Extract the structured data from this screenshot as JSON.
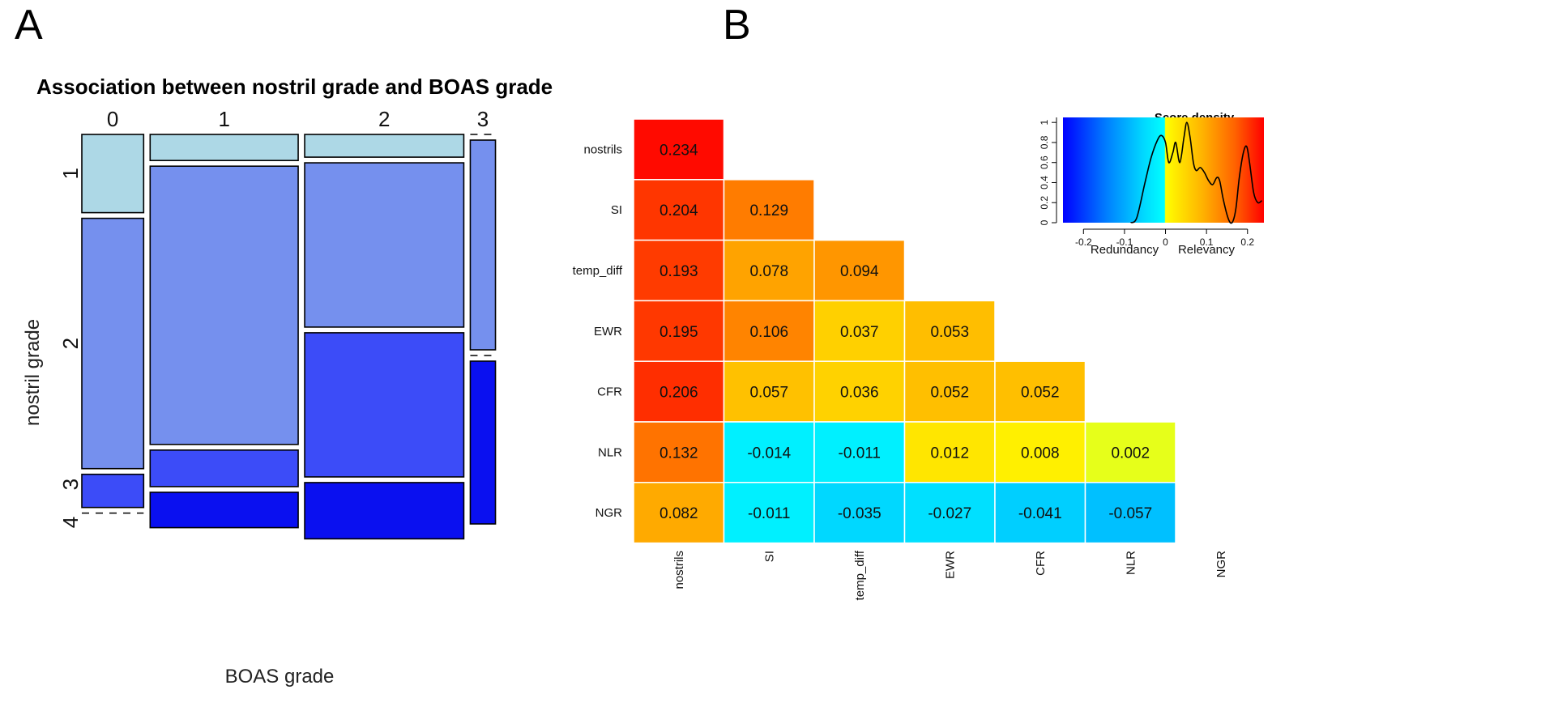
{
  "panels": {
    "a": "A",
    "b": "B"
  },
  "colors": {
    "row1": "#add8e6",
    "row2": "#7590ee",
    "row3": "#3c4cf8",
    "row4": "#0a10f0",
    "grid_line": "#ffffff"
  },
  "chart_data": [
    {
      "type": "mosaic",
      "title": "Association between nostril grade and BOAS grade",
      "xlabel": "BOAS grade",
      "ylabel": "nostril grade",
      "col_categories": [
        "0",
        "1",
        "2",
        "3"
      ],
      "row_categories": [
        "1",
        "2",
        "3",
        "4"
      ],
      "col_proportions": [
        0.162,
        0.388,
        0.417,
        0.066
      ],
      "row_proportions_by_col": [
        [
          0.21,
          0.672,
          0.089,
          0.0
        ],
        [
          0.07,
          0.747,
          0.098,
          0.095
        ],
        [
          0.061,
          0.441,
          0.387,
          0.151
        ],
        [
          0.0,
          0.563,
          0.0,
          0.437
        ]
      ]
    },
    {
      "type": "heatmap",
      "title": "",
      "row_labels": [
        "nostrils",
        "SI",
        "temp_diff",
        "EWR",
        "CFR",
        "NLR",
        "NGR"
      ],
      "col_labels": [
        "nostrils",
        "SI",
        "temp_diff",
        "EWR",
        "CFR",
        "NLR",
        "NGR"
      ],
      "values": [
        [
          0.234
        ],
        [
          0.204,
          0.129
        ],
        [
          0.193,
          0.078,
          0.094
        ],
        [
          0.195,
          0.106,
          0.037,
          0.053
        ],
        [
          0.206,
          0.057,
          0.036,
          0.052,
          0.052
        ],
        [
          0.132,
          -0.014,
          -0.011,
          0.012,
          0.008,
          0.002
        ],
        [
          0.082,
          -0.011,
          -0.035,
          -0.027,
          -0.041,
          -0.057
        ]
      ],
      "labels": [
        [
          "0.234"
        ],
        [
          "0.204",
          "0.129"
        ],
        [
          "0.193",
          "0.078",
          "0.094"
        ],
        [
          "0.195",
          "0.106",
          "0.037",
          "0.053"
        ],
        [
          "0.206",
          "0.057",
          "0.036",
          "0.052",
          "0.052"
        ],
        [
          "0.132",
          "-0.014",
          "-0.011",
          "0.012",
          "0.008",
          "0.002"
        ],
        [
          "0.082",
          "-0.011",
          "-0.035",
          "-0.027",
          "-0.041",
          "-0.057"
        ]
      ],
      "cell_colors": [
        [
          "#ff0a00"
        ],
        [
          "#ff3600",
          "#ff7c00"
        ],
        [
          "#ff3b00",
          "#ffa300",
          "#ff9600"
        ],
        [
          "#ff3800",
          "#ff8400",
          "#ffd000",
          "#ffbe00"
        ],
        [
          "#ff2e00",
          "#ffc100",
          "#ffd200",
          "#ffbf00",
          "#ffbf00"
        ],
        [
          "#ff7300",
          "#00f0ff",
          "#00f0ff",
          "#ffe600",
          "#fff000",
          "#e6ff1a"
        ],
        [
          "#ffaa00",
          "#00f0ff",
          "#00d8ff",
          "#00e0ff",
          "#00cfff",
          "#00c0ff"
        ]
      ]
    },
    {
      "type": "line",
      "title": "Score density",
      "xlabel_left": "Redundancy",
      "xlabel_right": "Relevancy",
      "xlim": [
        -0.25,
        0.24
      ],
      "ylim": [
        0,
        1.05
      ],
      "x_ticks": [
        "-0.2",
        "-0.1",
        "0",
        "0.1",
        "0.2"
      ],
      "x_tick_values": [
        -0.2,
        -0.1,
        0,
        0.1,
        0.2
      ],
      "y_ticks": [
        "0",
        "0.2",
        "0.4",
        "0.6",
        "0.8",
        "1"
      ],
      "y_tick_values": [
        0,
        0.2,
        0.4,
        0.6,
        0.8,
        1
      ],
      "x": [
        -0.085,
        -0.07,
        -0.05,
        -0.035,
        -0.02,
        -0.01,
        0.0,
        0.008,
        0.018,
        0.025,
        0.035,
        0.045,
        0.052,
        0.06,
        0.068,
        0.075,
        0.085,
        0.095,
        0.105,
        0.115,
        0.125,
        0.132,
        0.14,
        0.15,
        0.158,
        0.165,
        0.172,
        0.18,
        0.19,
        0.198,
        0.205,
        0.215,
        0.225,
        0.235
      ],
      "y": [
        0.0,
        0.05,
        0.4,
        0.65,
        0.82,
        0.87,
        0.8,
        0.6,
        0.7,
        0.8,
        0.6,
        0.85,
        1.0,
        0.85,
        0.6,
        0.52,
        0.55,
        0.5,
        0.42,
        0.38,
        0.45,
        0.42,
        0.25,
        0.08,
        0.0,
        0.02,
        0.15,
        0.45,
        0.7,
        0.76,
        0.6,
        0.3,
        0.2,
        0.22
      ]
    }
  ]
}
